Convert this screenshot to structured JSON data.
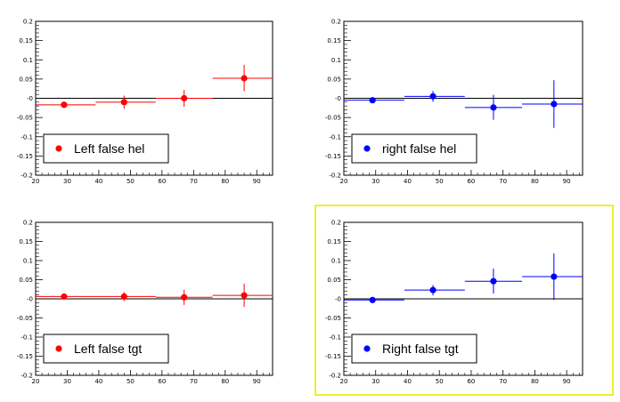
{
  "chart_data": [
    {
      "type": "scatter",
      "title": "",
      "xlabel": "",
      "ylabel": "",
      "xlim": [
        20,
        95
      ],
      "ylim": [
        -0.2,
        0.2
      ],
      "x_ticks": [
        "20",
        "30",
        "40",
        "50",
        "60",
        "70",
        "80",
        "90"
      ],
      "y_ticks": [
        "-0.2",
        "-0.15",
        "-0.1",
        "-0.05",
        "-0",
        "0.05",
        "0.1",
        "0.15",
        "0.2"
      ],
      "grid": false,
      "legend": {
        "placement": "bottom-left",
        "label": "Left false hel"
      },
      "color": "#ff0000",
      "selected": false,
      "series": [
        {
          "name": "Left false hel",
          "points": [
            {
              "x": 29,
              "y": -0.017,
              "xlow": 20,
              "xhigh": 39,
              "ylow": -0.025,
              "yhigh": -0.009
            },
            {
              "x": 48,
              "y": -0.01,
              "xlow": 39,
              "xhigh": 58,
              "ylow": -0.027,
              "yhigh": 0.007
            },
            {
              "x": 67,
              "y": 0.0,
              "xlow": 58,
              "xhigh": 76,
              "ylow": -0.022,
              "yhigh": 0.022
            },
            {
              "x": 86,
              "y": 0.052,
              "xlow": 76,
              "xhigh": 95,
              "ylow": 0.018,
              "yhigh": 0.087
            }
          ]
        }
      ]
    },
    {
      "type": "scatter",
      "title": "",
      "xlabel": "",
      "ylabel": "",
      "xlim": [
        20,
        95
      ],
      "ylim": [
        -0.2,
        0.2
      ],
      "x_ticks": [
        "20",
        "30",
        "40",
        "50",
        "60",
        "70",
        "80",
        "90"
      ],
      "y_ticks": [
        "-0.2",
        "-0.15",
        "-0.1",
        "-0.05",
        "-0",
        "0.05",
        "0.1",
        "0.15",
        "0.2"
      ],
      "grid": false,
      "legend": {
        "placement": "bottom-left",
        "label": "right false hel"
      },
      "color": "#0000ff",
      "selected": false,
      "series": [
        {
          "name": "right false hel",
          "points": [
            {
              "x": 29,
              "y": -0.005,
              "xlow": 20,
              "xhigh": 39,
              "ylow": -0.011,
              "yhigh": 0.002
            },
            {
              "x": 48,
              "y": 0.005,
              "xlow": 39,
              "xhigh": 58,
              "ylow": -0.009,
              "yhigh": 0.019
            },
            {
              "x": 67,
              "y": -0.024,
              "xlow": 58,
              "xhigh": 76,
              "ylow": -0.056,
              "yhigh": 0.009
            },
            {
              "x": 86,
              "y": -0.015,
              "xlow": 76,
              "xhigh": 95,
              "ylow": -0.077,
              "yhigh": 0.047
            }
          ]
        }
      ]
    },
    {
      "type": "scatter",
      "title": "",
      "xlabel": "",
      "ylabel": "",
      "xlim": [
        20,
        95
      ],
      "ylim": [
        -0.2,
        0.2
      ],
      "x_ticks": [
        "20",
        "30",
        "40",
        "50",
        "60",
        "70",
        "80",
        "90"
      ],
      "y_ticks": [
        "-0.2",
        "-0.15",
        "-0.1",
        "-0.05",
        "-0",
        "0.05",
        "0.1",
        "0.15",
        "0.2"
      ],
      "grid": false,
      "legend": {
        "placement": "bottom-left",
        "label": "Left false tgt"
      },
      "color": "#ff0000",
      "selected": false,
      "series": [
        {
          "name": "Left false tgt",
          "points": [
            {
              "x": 29,
              "y": 0.006,
              "xlow": 20,
              "xhigh": 39,
              "ylow": 0.0,
              "yhigh": 0.012
            },
            {
              "x": 48,
              "y": 0.006,
              "xlow": 39,
              "xhigh": 58,
              "ylow": -0.006,
              "yhigh": 0.018
            },
            {
              "x": 67,
              "y": 0.004,
              "xlow": 58,
              "xhigh": 76,
              "ylow": -0.016,
              "yhigh": 0.024
            },
            {
              "x": 86,
              "y": 0.009,
              "xlow": 76,
              "xhigh": 95,
              "ylow": -0.021,
              "yhigh": 0.04
            }
          ]
        }
      ]
    },
    {
      "type": "scatter",
      "title": "",
      "xlabel": "",
      "ylabel": "",
      "xlim": [
        20,
        95
      ],
      "ylim": [
        -0.2,
        0.2
      ],
      "x_ticks": [
        "20",
        "30",
        "40",
        "50",
        "60",
        "70",
        "80",
        "90"
      ],
      "y_ticks": [
        "-0.2",
        "-0.15",
        "-0.1",
        "-0.05",
        "-0",
        "0.05",
        "0.1",
        "0.15",
        "0.2"
      ],
      "grid": false,
      "legend": {
        "placement": "bottom-left",
        "label": "Right false tgt"
      },
      "color": "#0000ff",
      "selected": true,
      "selection_color": "#eeee33",
      "series": [
        {
          "name": "Right false tgt",
          "points": [
            {
              "x": 29,
              "y": -0.003,
              "xlow": 20,
              "xhigh": 39,
              "ylow": -0.008,
              "yhigh": 0.002
            },
            {
              "x": 48,
              "y": 0.023,
              "xlow": 39,
              "xhigh": 58,
              "ylow": 0.009,
              "yhigh": 0.036
            },
            {
              "x": 67,
              "y": 0.046,
              "xlow": 58,
              "xhigh": 76,
              "ylow": 0.014,
              "yhigh": 0.079
            },
            {
              "x": 86,
              "y": 0.058,
              "xlow": 76,
              "xhigh": 95,
              "ylow": -0.003,
              "yhigh": 0.119
            }
          ]
        }
      ]
    }
  ]
}
